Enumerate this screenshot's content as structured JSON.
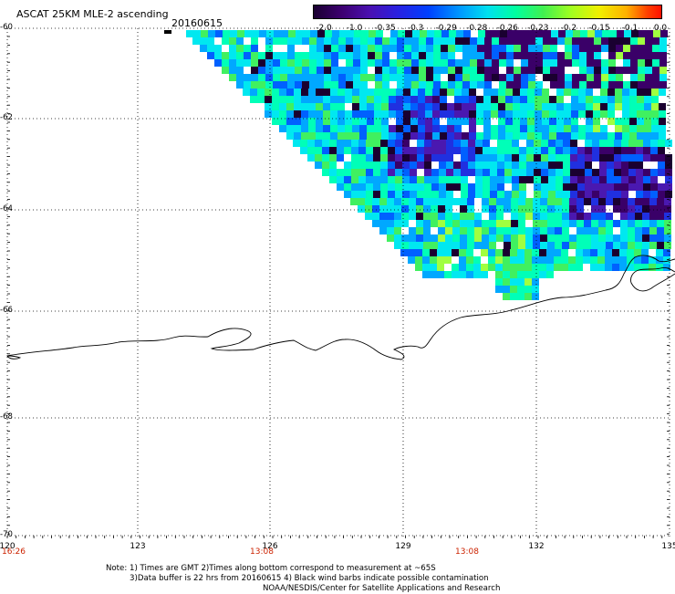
{
  "header": {
    "title": "ASCAT 25KM MLE-2 ascending",
    "date": "20160615"
  },
  "colorbar": {
    "labels": [
      "-2.0",
      "-1.0",
      "-0.35",
      "-0.3",
      "-0.29",
      "-0.28",
      "-0.26",
      "-0.23",
      "-0.2",
      "-0.15",
      "-0.1",
      "0.0"
    ],
    "colors": [
      "#2a0040",
      "#4a0090",
      "#3000c8",
      "#0030ff",
      "#0090ff",
      "#00d8ff",
      "#00ffb0",
      "#30f060",
      "#90ff20",
      "#e8ff00",
      "#ffb000",
      "#ff3000"
    ]
  },
  "axes": {
    "lat_labels": [
      "-60",
      "-62",
      "-64",
      "-66",
      "-68",
      "-70"
    ],
    "lon_labels": [
      "120",
      "123",
      "126",
      "129",
      "132",
      "135"
    ],
    "time_labels": [
      "16:26",
      "13:08",
      "13:08"
    ]
  },
  "footer": {
    "note_line1": "Note: 1) Times are GMT 2)Times along bottom correspond to measurement at ~65S",
    "note_line2": "3)Data buffer is 22 hrs from 20160615 4) Black wind barbs indicate possible contamination",
    "note_line3": "NOAA/NESDIS/Center for Satellite Applications and Research"
  }
}
